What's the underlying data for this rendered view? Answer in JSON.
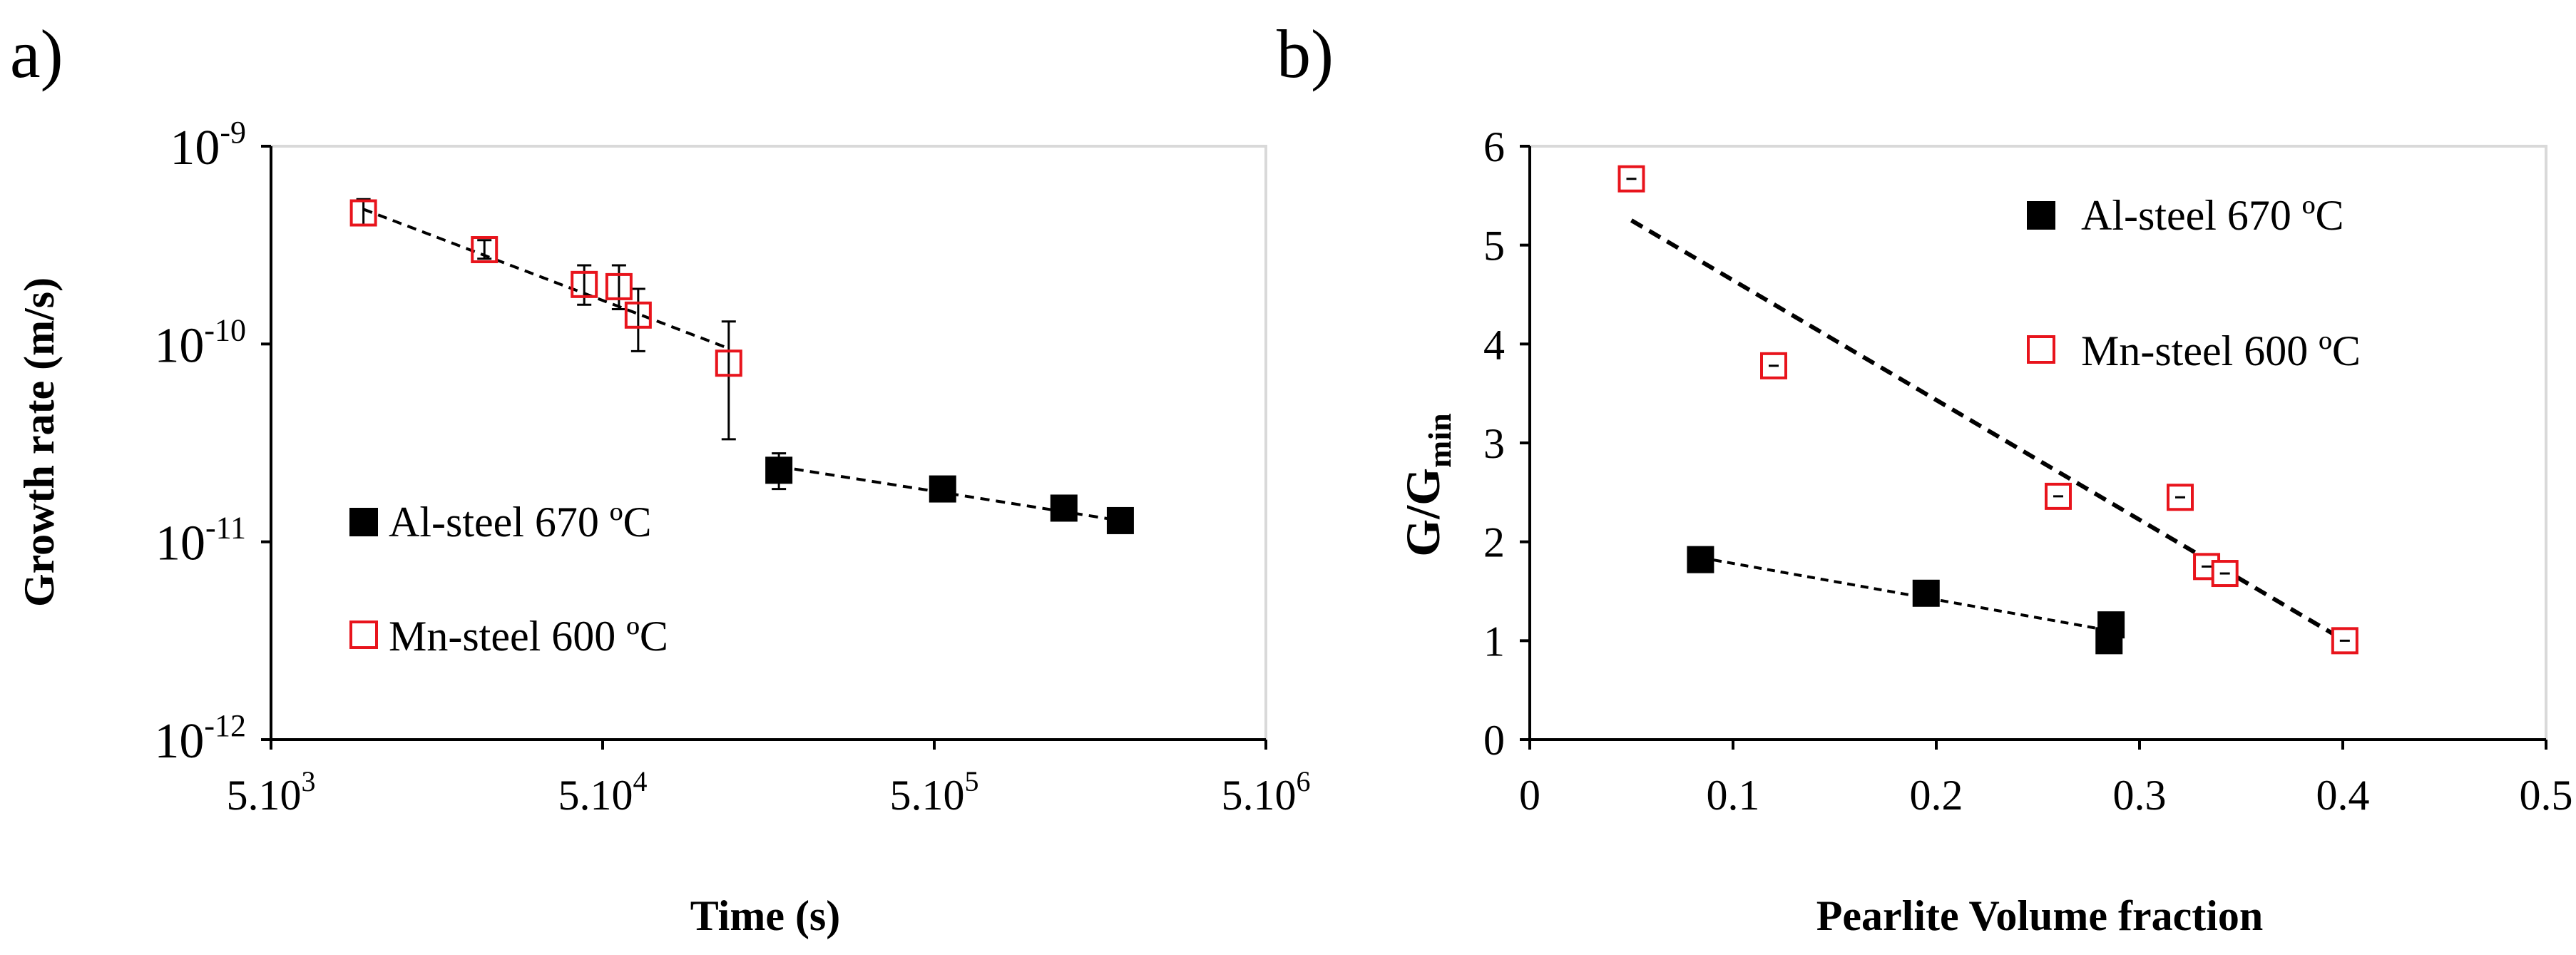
{
  "panel_labels": {
    "a": "a)",
    "b": "b)"
  },
  "colors": {
    "al": "#000000",
    "mn": "#e8141c",
    "axis": "#000000",
    "frame": "#d9d9d9"
  },
  "chart_data": [
    {
      "id": "a",
      "type": "scatter",
      "xscale": "log",
      "yscale": "log",
      "xlabel": "Time (s)",
      "ylabel": "Growth rate (m/s)",
      "xlim": [
        5000,
        5000000
      ],
      "ylim": [
        1e-12,
        1e-09
      ],
      "xticks": [
        {
          "value": 5000,
          "base": "5.10",
          "exp": "3"
        },
        {
          "value": 50000,
          "base": "5.10",
          "exp": "4"
        },
        {
          "value": 500000,
          "base": "5.10",
          "exp": "5"
        },
        {
          "value": 5000000,
          "base": "5.10",
          "exp": "6"
        }
      ],
      "yticks": [
        {
          "value": 1e-09,
          "base": "10",
          "exp": "-9"
        },
        {
          "value": 1e-10,
          "base": "10",
          "exp": "-10"
        },
        {
          "value": 1e-11,
          "base": "10",
          "exp": "-11"
        },
        {
          "value": 1e-12,
          "base": "10",
          "exp": "-12"
        }
      ],
      "legend": {
        "position": "lower-left",
        "order": [
          "Al-steel 670 ºC",
          "Mn-steel 600 ºC"
        ]
      },
      "series": [
        {
          "name": "Al-steel 670 ºC",
          "marker": "filled-square",
          "points": [
            {
              "x": 170000,
              "y": 2.3e-11,
              "ylo": 1.85e-11,
              "yhi": 2.8e-11
            },
            {
              "x": 530000,
              "y": 1.85e-11
            },
            {
              "x": 1230000,
              "y": 1.48e-11
            },
            {
              "x": 1820000,
              "y": 1.28e-11
            }
          ],
          "trend": [
            {
              "x": 170000,
              "y": 2.4e-11
            },
            {
              "x": 1820000,
              "y": 1.28e-11
            }
          ]
        },
        {
          "name": "Mn-steel 600 ºC",
          "marker": "open-square",
          "points": [
            {
              "x": 9500,
              "y": 4.6e-10,
              "ylo": 4e-10,
              "yhi": 5.4e-10
            },
            {
              "x": 22000,
              "y": 3e-10,
              "ylo": 2.7e-10,
              "yhi": 3.35e-10
            },
            {
              "x": 44000,
              "y": 2e-10,
              "ylo": 1.58e-10,
              "yhi": 2.5e-10
            },
            {
              "x": 56000,
              "y": 1.95e-10,
              "ylo": 1.5e-10,
              "yhi": 2.5e-10
            },
            {
              "x": 64000,
              "y": 1.4e-10,
              "ylo": 9.2e-11,
              "yhi": 1.9e-10
            },
            {
              "x": 120000,
              "y": 8e-11,
              "ylo": 3.3e-11,
              "yhi": 1.3e-10
            }
          ],
          "trend": [
            {
              "x": 9500,
              "y": 4.8e-10
            },
            {
              "x": 120000,
              "y": 9.5e-11
            }
          ]
        }
      ]
    },
    {
      "id": "b",
      "type": "scatter",
      "xlabel": "Pearlite Volume fraction",
      "ylabel_main": "G/G",
      "ylabel_sub": "min",
      "xlim": [
        0,
        0.5
      ],
      "ylim": [
        0,
        6
      ],
      "xticks": [
        0,
        0.1,
        0.2,
        0.3,
        0.4,
        0.5
      ],
      "xtick_labels": [
        "0",
        "0.1",
        "0.2",
        "0.3",
        "0.4",
        "0.5"
      ],
      "yticks": [
        0,
        1,
        2,
        3,
        4,
        5,
        6
      ],
      "ytick_labels": [
        "0",
        "1",
        "2",
        "3",
        "4",
        "5",
        "6"
      ],
      "legend": {
        "position": "top-right",
        "order": [
          "Al-steel 670 ºC",
          "Mn-steel 600 ºC"
        ]
      },
      "series": [
        {
          "name": "Al-steel 670 ºC",
          "marker": "filled-square",
          "points": [
            {
              "x": 0.084,
              "y": 1.82
            },
            {
              "x": 0.195,
              "y": 1.48
            },
            {
              "x": 0.286,
              "y": 1.16
            },
            {
              "x": 0.285,
              "y": 1.0
            }
          ],
          "trend": [
            {
              "x": 0.084,
              "y": 1.84
            },
            {
              "x": 0.286,
              "y": 1.1
            }
          ]
        },
        {
          "name": "Mn-steel 600 ºC",
          "marker": "open-square",
          "points": [
            {
              "x": 0.05,
              "y": 5.67
            },
            {
              "x": 0.12,
              "y": 3.78
            },
            {
              "x": 0.26,
              "y": 2.46
            },
            {
              "x": 0.32,
              "y": 2.45
            },
            {
              "x": 0.333,
              "y": 1.75
            },
            {
              "x": 0.342,
              "y": 1.68
            },
            {
              "x": 0.401,
              "y": 1.0
            }
          ],
          "trend": [
            {
              "x": 0.05,
              "y": 5.25
            },
            {
              "x": 0.401,
              "y": 1.0
            }
          ]
        }
      ]
    }
  ]
}
